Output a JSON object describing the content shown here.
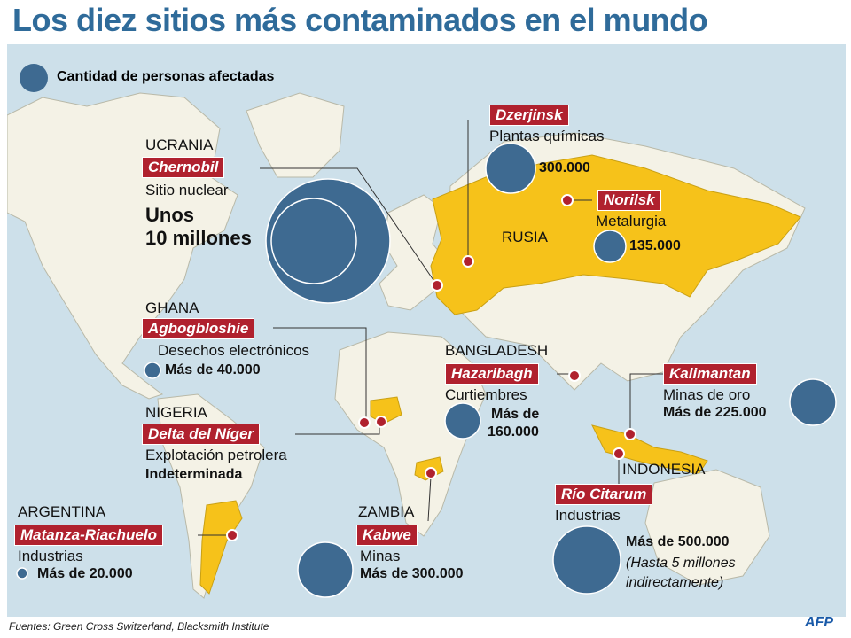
{
  "title": "Los diez sitios más contaminados en el mundo",
  "legend": {
    "label": "Cantidad de personas afectadas"
  },
  "colors": {
    "water": "#cde0ea",
    "land": "#f4f2e6",
    "highlight": "#f6c21a",
    "tag": "#b0212e",
    "bubble": "#3e6a91",
    "dot": "#b0212e"
  },
  "sites": {
    "chernobil": {
      "country": "UCRANIA",
      "name": "Chernobil",
      "type": "Sitio nuclear",
      "value_line1": "Unos",
      "value_line2": "10 millones"
    },
    "dzerjinsk": {
      "name": "Dzerjinsk",
      "type": "Plantas químicas",
      "value": "300.000"
    },
    "norilsk": {
      "name": "Norilsk",
      "type": "Metalurgia",
      "value": "135.000"
    },
    "agbogbloshie": {
      "country": "GHANA",
      "name": "Agbogbloshie",
      "type": "Desechos electrónicos",
      "value": "Más de 40.000"
    },
    "niger": {
      "country": "NIGERIA",
      "name": "Delta del Níger",
      "type": "Explotación petrolera",
      "value": "Indeterminada"
    },
    "hazaribagh": {
      "country": "BANGLADESH",
      "name": "Hazaribagh",
      "type": "Curtiembres",
      "value_line1": "Más de",
      "value_line2": "160.000"
    },
    "kalimantan": {
      "name": "Kalimantan",
      "type": "Minas de oro",
      "value": "Más de 225.000"
    },
    "citarum": {
      "country": "INDONESIA",
      "name": "Río Citarum",
      "type": "Industrias",
      "value": "Más de 500.000",
      "note_line1": "(Hasta 5 millones",
      "note_line2": "indirectamente)"
    },
    "matanza": {
      "country": "ARGENTINA",
      "name": "Matanza-Riachuelo",
      "type": "Industrias",
      "value": "Más de 20.000"
    },
    "kabwe": {
      "country": "ZAMBIA",
      "name": "Kabwe",
      "type": "Minas",
      "value": "Más de 300.000"
    }
  },
  "russia_label": "RUSIA",
  "footer": "Fuentes: Green Cross Switzerland, Blacksmith Institute",
  "logo": "AFP"
}
